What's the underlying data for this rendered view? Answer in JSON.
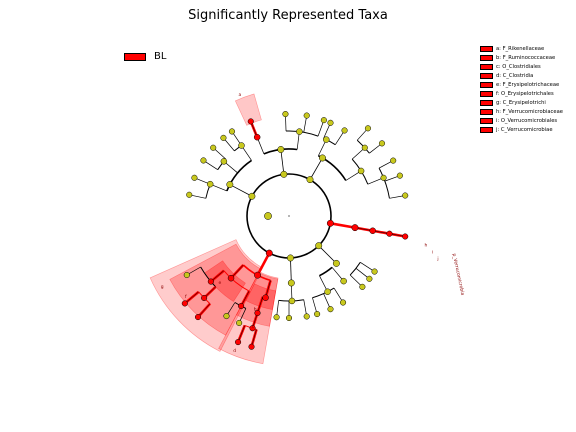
{
  "chart_data": {
    "type": "cladogram",
    "title": "Significantly Represented Taxa",
    "group_legend": [
      {
        "name": "BL",
        "color": "#ff0000"
      }
    ],
    "taxa_legend": [
      {
        "key": "a",
        "label": "a: F_Rikenellaceae"
      },
      {
        "key": "b",
        "label": "b: F_Ruminococcaceae"
      },
      {
        "key": "c",
        "label": "c: O_Clostridiales"
      },
      {
        "key": "d",
        "label": "d: C_Clostridia"
      },
      {
        "key": "e",
        "label": "e: F_Erysipelotrichaceae"
      },
      {
        "key": "f",
        "label": "f: O_Erysipelotrichales"
      },
      {
        "key": "g",
        "label": "g: C_Erysipelotrichi"
      },
      {
        "key": "h",
        "label": "h: F_Verrucomicrobiaceae"
      },
      {
        "key": "i",
        "label": "i: O_Verrucomicrobiales"
      },
      {
        "key": "j",
        "label": "j: C_Verrucomicrobiae"
      }
    ],
    "phylum_label": "p_Verrucomicrobia",
    "highlighted_taxa": [
      "a",
      "b",
      "c",
      "d",
      "e",
      "f",
      "g",
      "h",
      "i",
      "j"
    ],
    "colors": {
      "enriched_node": "#ff0000",
      "neutral_node": "#c8c81e",
      "highlight": "#ff0000",
      "branch": "#000000"
    }
  }
}
